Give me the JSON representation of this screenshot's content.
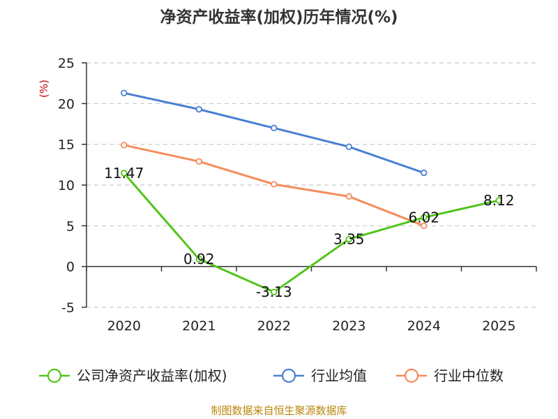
{
  "chart_data": {
    "type": "line",
    "title": "净资产收益率(加权)历年情况(%)",
    "ylabel": "(%)",
    "xlabel": "",
    "categories": [
      "2020",
      "2021",
      "2022",
      "2023",
      "2024",
      "2025"
    ],
    "yticks": [
      "25",
      "20",
      "15",
      "10",
      "5",
      "0",
      "-5"
    ],
    "ylim": [
      -5,
      25
    ],
    "grid": true,
    "legend_position": "bottom",
    "series": [
      {
        "name": "公司净资产收益率(加权)",
        "color": "#52c41a",
        "values": [
          11.47,
          0.92,
          -3.13,
          3.35,
          6.02,
          8.12
        ],
        "labels": [
          "11.47",
          "0.92",
          "-3.13",
          "3.35",
          "6.02",
          "8.12"
        ]
      },
      {
        "name": "行业均值",
        "color": "#4a7fd4",
        "values": [
          21.3,
          19.3,
          17.0,
          14.7,
          11.5,
          null
        ]
      },
      {
        "name": "行业中位数",
        "color": "#f58c5b",
        "values": [
          14.9,
          12.9,
          10.1,
          8.6,
          5.0,
          null
        ]
      }
    ]
  },
  "footer": {
    "source": "制图数据来自恒生聚源数据库"
  }
}
